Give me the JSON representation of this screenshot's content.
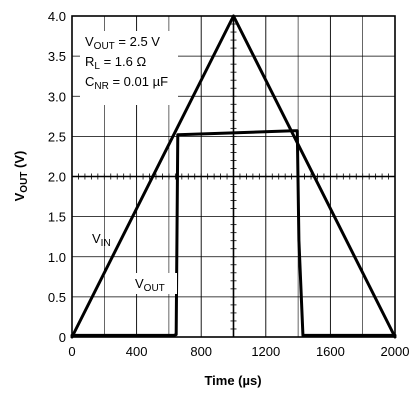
{
  "chart_data": {
    "type": "line",
    "xlabel": "Time (µs)",
    "ylabel": "V_OUT (V)",
    "xlim": [
      0,
      2000
    ],
    "ylim": [
      0,
      4.0
    ],
    "x_ticks": [
      "0",
      "400",
      "800",
      "1200",
      "1600",
      "2000"
    ],
    "y_ticks": [
      "0",
      "0.5",
      "1.0",
      "1.5",
      "2.0",
      "2.5",
      "3.0",
      "3.5",
      "4.0"
    ],
    "grid": true,
    "conditions": [
      {
        "base": "V",
        "sub": "OUT",
        "rest": " = 2.5 V"
      },
      {
        "base": "R",
        "sub": "L",
        "rest": " = 1.6 Ω"
      },
      {
        "base": "C",
        "sub": "NR",
        "rest": " = 0.01 µF"
      }
    ],
    "series": [
      {
        "name": "V_IN",
        "label_base": "V",
        "label_sub": "IN",
        "x": [
          0,
          1000,
          2000
        ],
        "y": [
          0,
          4.0,
          0
        ]
      },
      {
        "name": "V_OUT",
        "label_base": "V",
        "label_sub": "OUT",
        "x": [
          0,
          630,
          645,
          655,
          1370,
          1395,
          1405,
          1430,
          2000
        ],
        "y": [
          0.02,
          0.02,
          0.03,
          2.52,
          2.57,
          2.57,
          1.2,
          0.02,
          0.02
        ]
      }
    ]
  }
}
